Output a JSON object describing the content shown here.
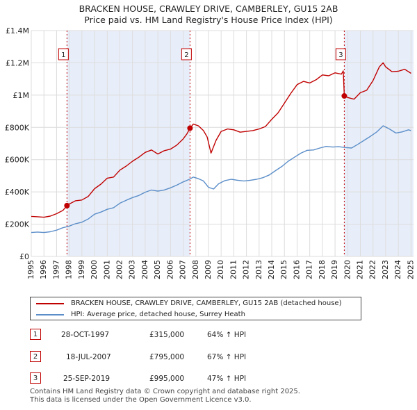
{
  "title_line1": "BRACKEN HOUSE, CRAWLEY DRIVE, CAMBERLEY, GU15 2AB",
  "title_line2": "Price paid vs. HM Land Registry's House Price Index (HPI)",
  "chart_data": {
    "type": "line",
    "title": "BRACKEN HOUSE, CRAWLEY DRIVE, CAMBERLEY, GU15 2AB — Price paid vs. HM Land Registry's House Price Index (HPI)",
    "xlabel": "",
    "ylabel": "",
    "xlim": [
      1995.0,
      2025.2
    ],
    "ylim": [
      0,
      1400000
    ],
    "x_ticks": [
      1995,
      1996,
      1997,
      1998,
      1999,
      2000,
      2001,
      2002,
      2003,
      2004,
      2005,
      2006,
      2007,
      2008,
      2009,
      2010,
      2011,
      2012,
      2013,
      2014,
      2015,
      2016,
      2017,
      2018,
      2019,
      2020,
      2021,
      2022,
      2023,
      2024,
      2025
    ],
    "y_ticks": [
      0,
      200000,
      400000,
      600000,
      800000,
      1000000,
      1200000,
      1400000
    ],
    "y_tick_labels": [
      "£0",
      "£200K",
      "£400K",
      "£600K",
      "£800K",
      "£1M",
      "£1.2M",
      "£1.4M"
    ],
    "grid": true,
    "shaded_ranges": [
      [
        1997.82,
        2007.54
      ],
      [
        2019.73,
        2025.2
      ]
    ],
    "series": [
      {
        "name": "BRACKEN HOUSE, CRAWLEY DRIVE, CAMBERLEY, GU15 2AB (detached house)",
        "color": "#c00000",
        "points": [
          [
            1995.0,
            248000
          ],
          [
            1995.5,
            246000
          ],
          [
            1996.0,
            243000
          ],
          [
            1996.5,
            250000
          ],
          [
            1997.0,
            265000
          ],
          [
            1997.5,
            285000
          ],
          [
            1997.82,
            315000
          ],
          [
            1998.0,
            325000
          ],
          [
            1998.5,
            345000
          ],
          [
            1999.0,
            350000
          ],
          [
            1999.5,
            372000
          ],
          [
            2000.0,
            420000
          ],
          [
            2000.5,
            448000
          ],
          [
            2001.0,
            485000
          ],
          [
            2001.5,
            492000
          ],
          [
            2002.0,
            535000
          ],
          [
            2002.5,
            560000
          ],
          [
            2003.0,
            590000
          ],
          [
            2003.5,
            615000
          ],
          [
            2004.0,
            645000
          ],
          [
            2004.5,
            660000
          ],
          [
            2005.0,
            635000
          ],
          [
            2005.5,
            655000
          ],
          [
            2006.0,
            665000
          ],
          [
            2006.5,
            690000
          ],
          [
            2007.0,
            728000
          ],
          [
            2007.3,
            760000
          ],
          [
            2007.54,
            795000
          ],
          [
            2007.8,
            820000
          ],
          [
            2008.2,
            810000
          ],
          [
            2008.6,
            780000
          ],
          [
            2008.9,
            740000
          ],
          [
            2009.2,
            640000
          ],
          [
            2009.6,
            720000
          ],
          [
            2010.0,
            775000
          ],
          [
            2010.5,
            790000
          ],
          [
            2011.0,
            785000
          ],
          [
            2011.5,
            770000
          ],
          [
            2012.0,
            775000
          ],
          [
            2012.5,
            780000
          ],
          [
            2013.0,
            790000
          ],
          [
            2013.5,
            805000
          ],
          [
            2014.0,
            850000
          ],
          [
            2014.5,
            890000
          ],
          [
            2015.0,
            950000
          ],
          [
            2015.5,
            1010000
          ],
          [
            2016.0,
            1065000
          ],
          [
            2016.5,
            1085000
          ],
          [
            2017.0,
            1075000
          ],
          [
            2017.5,
            1095000
          ],
          [
            2018.0,
            1125000
          ],
          [
            2018.5,
            1120000
          ],
          [
            2019.0,
            1138000
          ],
          [
            2019.5,
            1130000
          ],
          [
            2019.65,
            1150000
          ],
          [
            2019.73,
            995000
          ],
          [
            2020.0,
            985000
          ],
          [
            2020.5,
            975000
          ],
          [
            2021.0,
            1015000
          ],
          [
            2021.5,
            1030000
          ],
          [
            2022.0,
            1090000
          ],
          [
            2022.5,
            1175000
          ],
          [
            2022.8,
            1200000
          ],
          [
            2023.0,
            1175000
          ],
          [
            2023.5,
            1145000
          ],
          [
            2024.0,
            1148000
          ],
          [
            2024.5,
            1160000
          ],
          [
            2025.0,
            1135000
          ]
        ]
      },
      {
        "name": "HPI: Average price, detached house, Surrey Heath",
        "color": "#5b8ec9",
        "points": [
          [
            1995.0,
            148000
          ],
          [
            1995.5,
            151000
          ],
          [
            1996.0,
            148000
          ],
          [
            1996.5,
            153000
          ],
          [
            1997.0,
            163000
          ],
          [
            1997.5,
            178000
          ],
          [
            1998.0,
            188000
          ],
          [
            1998.5,
            203000
          ],
          [
            1999.0,
            212000
          ],
          [
            1999.5,
            232000
          ],
          [
            2000.0,
            262000
          ],
          [
            2000.5,
            275000
          ],
          [
            2001.0,
            292000
          ],
          [
            2001.5,
            302000
          ],
          [
            2002.0,
            330000
          ],
          [
            2002.5,
            348000
          ],
          [
            2003.0,
            365000
          ],
          [
            2003.5,
            378000
          ],
          [
            2004.0,
            398000
          ],
          [
            2004.5,
            412000
          ],
          [
            2005.0,
            405000
          ],
          [
            2005.5,
            412000
          ],
          [
            2006.0,
            425000
          ],
          [
            2006.5,
            442000
          ],
          [
            2007.0,
            462000
          ],
          [
            2007.5,
            478000
          ],
          [
            2007.8,
            492000
          ],
          [
            2008.2,
            482000
          ],
          [
            2008.6,
            468000
          ],
          [
            2009.0,
            428000
          ],
          [
            2009.4,
            418000
          ],
          [
            2009.8,
            450000
          ],
          [
            2010.3,
            470000
          ],
          [
            2010.8,
            478000
          ],
          [
            2011.3,
            472000
          ],
          [
            2011.8,
            468000
          ],
          [
            2012.3,
            472000
          ],
          [
            2012.8,
            478000
          ],
          [
            2013.3,
            488000
          ],
          [
            2013.8,
            505000
          ],
          [
            2014.3,
            532000
          ],
          [
            2014.8,
            558000
          ],
          [
            2015.3,
            590000
          ],
          [
            2015.8,
            615000
          ],
          [
            2016.3,
            640000
          ],
          [
            2016.8,
            658000
          ],
          [
            2017.3,
            660000
          ],
          [
            2017.8,
            672000
          ],
          [
            2018.3,
            682000
          ],
          [
            2018.8,
            678000
          ],
          [
            2019.3,
            680000
          ],
          [
            2019.8,
            675000
          ],
          [
            2020.3,
            672000
          ],
          [
            2020.8,
            695000
          ],
          [
            2021.3,
            720000
          ],
          [
            2021.8,
            745000
          ],
          [
            2022.3,
            772000
          ],
          [
            2022.8,
            810000
          ],
          [
            2023.3,
            790000
          ],
          [
            2023.8,
            765000
          ],
          [
            2024.3,
            772000
          ],
          [
            2024.8,
            785000
          ],
          [
            2025.0,
            780000
          ]
        ]
      }
    ],
    "markers": [
      {
        "label": "1",
        "x": 1997.82,
        "y": 315000
      },
      {
        "label": "2",
        "x": 2007.54,
        "y": 795000
      },
      {
        "label": "3",
        "x": 2019.73,
        "y": 995000
      }
    ],
    "legend_position": "below"
  },
  "legend": {
    "items": [
      {
        "label": "BRACKEN HOUSE, CRAWLEY DRIVE, CAMBERLEY, GU15 2AB (detached house)",
        "color": "#c00000"
      },
      {
        "label": "HPI: Average price, detached house, Surrey Heath",
        "color": "#5b8ec9"
      }
    ]
  },
  "sales": [
    {
      "num": "1",
      "date": "28-OCT-1997",
      "price": "£315,000",
      "hpi": "64% ↑ HPI"
    },
    {
      "num": "2",
      "date": "18-JUL-2007",
      "price": "£795,000",
      "hpi": "67% ↑ HPI"
    },
    {
      "num": "3",
      "date": "25-SEP-2019",
      "price": "£995,000",
      "hpi": "47% ↑ HPI"
    }
  ],
  "footer": {
    "line1": "Contains HM Land Registry data © Crown copyright and database right 2025.",
    "line2": "This data is licensed under the Open Government Licence v3.0."
  }
}
